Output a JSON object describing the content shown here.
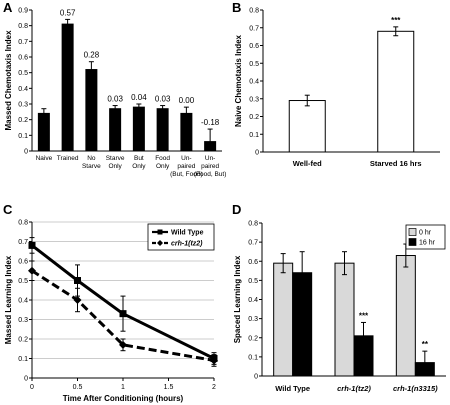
{
  "panels": {
    "a": "A",
    "b": "B",
    "c": "C",
    "d": "D"
  },
  "chart_data": [
    {
      "id": "A",
      "type": "bar",
      "ylabel": "Massed Chemotaxis Index",
      "ylim": [
        0,
        0.9
      ],
      "yticks": [
        "0",
        "0.1",
        "0.2",
        "0.3",
        "0.4",
        "0.5",
        "0.6",
        "0.7",
        "0.8",
        "0.9"
      ],
      "categories": [
        [
          "Naive"
        ],
        [
          "Trained"
        ],
        [
          "No",
          "Starve"
        ],
        [
          "Starve",
          "Only"
        ],
        [
          "But",
          "Only"
        ],
        [
          "Food",
          "Only"
        ],
        [
          "Un-",
          "paired",
          "(But, Food)"
        ],
        [
          "Un-",
          "paired",
          "(Food, But)"
        ]
      ],
      "values": [
        0.24,
        0.81,
        0.52,
        0.27,
        0.28,
        0.27,
        0.24,
        0.06
      ],
      "errors": [
        0.03,
        0.03,
        0.05,
        0.02,
        0.02,
        0.02,
        0.04,
        0.08
      ],
      "annotations": [
        "",
        "0.57",
        "0.28",
        "0.03",
        "0.04",
        "0.03",
        "0.00",
        "-0.18"
      ],
      "color": "#000000"
    },
    {
      "id": "B",
      "type": "bar",
      "ylabel": "Naive Chemotaxis Index",
      "ylim": [
        0,
        0.8
      ],
      "yticks": [
        "0",
        "0.1",
        "0.2",
        "0.3",
        "0.4",
        "0.5",
        "0.6",
        "0.7",
        "0.8"
      ],
      "categories": [
        "Well-fed",
        "Starved 16 hrs"
      ],
      "values": [
        0.29,
        0.68
      ],
      "errors": [
        0.03,
        0.025
      ],
      "annotations": [
        "",
        "***"
      ],
      "color": "#ffffff"
    },
    {
      "id": "C",
      "type": "line",
      "xlabel": "Time After Conditioning (hours)",
      "ylabel": "Massed Learning Index",
      "xlim": [
        0,
        2
      ],
      "ylim": [
        0,
        0.8
      ],
      "xticks": [
        "0",
        "0.5",
        "1",
        "1.5",
        "2"
      ],
      "yticks": [
        "0",
        "0.1",
        "0.2",
        "0.3",
        "0.4",
        "0.5",
        "0.6",
        "0.7",
        "0.8"
      ],
      "legend_position": "top-right",
      "series": [
        {
          "name": "Wild Type",
          "x": [
            0,
            0.5,
            1,
            2
          ],
          "y": [
            0.68,
            0.5,
            0.33,
            0.1
          ],
          "errors": [
            0.04,
            0.08,
            0.09,
            0.03
          ],
          "style": "solid",
          "marker": "square"
        },
        {
          "name": "crh-1(tz2)",
          "x": [
            0,
            0.5,
            1,
            2
          ],
          "y": [
            0.55,
            0.4,
            0.17,
            0.09
          ],
          "errors": [
            0.05,
            0.06,
            0.03,
            0.03
          ],
          "style": "dashed",
          "marker": "diamond"
        }
      ]
    },
    {
      "id": "D",
      "type": "bar",
      "ylabel": "Spaced Learning Index",
      "ylim": [
        0,
        0.8
      ],
      "yticks": [
        "0",
        "0.1",
        "0.2",
        "0.3",
        "0.4",
        "0.5",
        "0.6",
        "0.7",
        "0.8"
      ],
      "categories": [
        "Wild Type",
        "crh-1(tz2)",
        "crh-1(n3315)"
      ],
      "legend_position": "top-right",
      "series": [
        {
          "name": "0 hr",
          "values": [
            0.59,
            0.59,
            0.63
          ],
          "errors": [
            0.05,
            0.06,
            0.06
          ],
          "color": "#d9d9d9"
        },
        {
          "name": "16 hr",
          "values": [
            0.54,
            0.21,
            0.07
          ],
          "errors": [
            0.11,
            0.07,
            0.06
          ],
          "color": "#000000"
        }
      ],
      "annotations_16hr": [
        "",
        "***",
        "**"
      ]
    }
  ]
}
